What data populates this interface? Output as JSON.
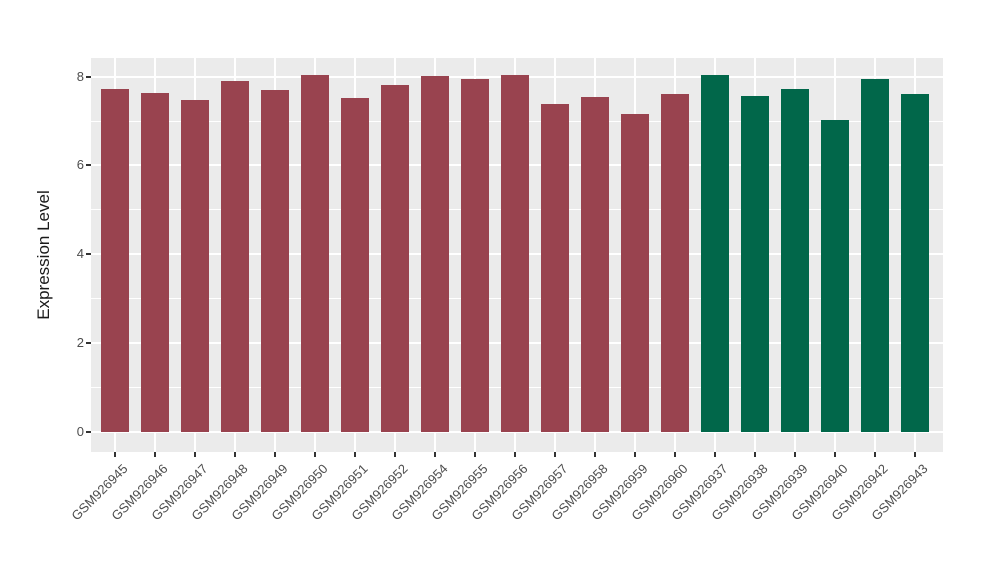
{
  "figure": {
    "background": "#FFFFFF",
    "panel_background": "#EBEBEB",
    "grid_color": "#FFFFFF",
    "tick_color": "#333333",
    "tick_label_color": "#4D4D4D",
    "axis_title_color": "#1A1A1A"
  },
  "chart_data": {
    "type": "bar",
    "title": "",
    "xlabel": "",
    "ylabel": "Expression Level",
    "grid": true,
    "legend_position": "none",
    "y_ticks": [
      0,
      2,
      4,
      6,
      8
    ],
    "y_minor_ticks": [
      1,
      3,
      5,
      7
    ],
    "ylim": [
      -0.42,
      8.45
    ],
    "categories": [
      "GSM926945",
      "GSM926946",
      "GSM926947",
      "GSM926948",
      "GSM926949",
      "GSM926950",
      "GSM926951",
      "GSM926952",
      "GSM926954",
      "GSM926955",
      "GSM926956",
      "GSM926957",
      "GSM926958",
      "GSM926959",
      "GSM926960",
      "GSM926937",
      "GSM926938",
      "GSM926939",
      "GSM926940",
      "GSM926942",
      "GSM926943"
    ],
    "values": [
      7.72,
      7.63,
      7.48,
      7.9,
      7.7,
      8.04,
      7.52,
      7.81,
      8.02,
      7.95,
      8.04,
      7.38,
      7.54,
      7.16,
      7.6,
      8.03,
      7.56,
      7.72,
      7.02,
      7.94,
      7.62
    ],
    "bar_colors": [
      "#99434F",
      "#99434F",
      "#99434F",
      "#99434F",
      "#99434F",
      "#99434F",
      "#99434F",
      "#99434F",
      "#99434F",
      "#99434F",
      "#99434F",
      "#99434F",
      "#99434F",
      "#99434F",
      "#99434F",
      "#01674A",
      "#01674A",
      "#01674A",
      "#01674A",
      "#01674A",
      "#01674A"
    ],
    "group_colors": {
      "maroon": "#99434F",
      "green": "#01674A"
    }
  }
}
